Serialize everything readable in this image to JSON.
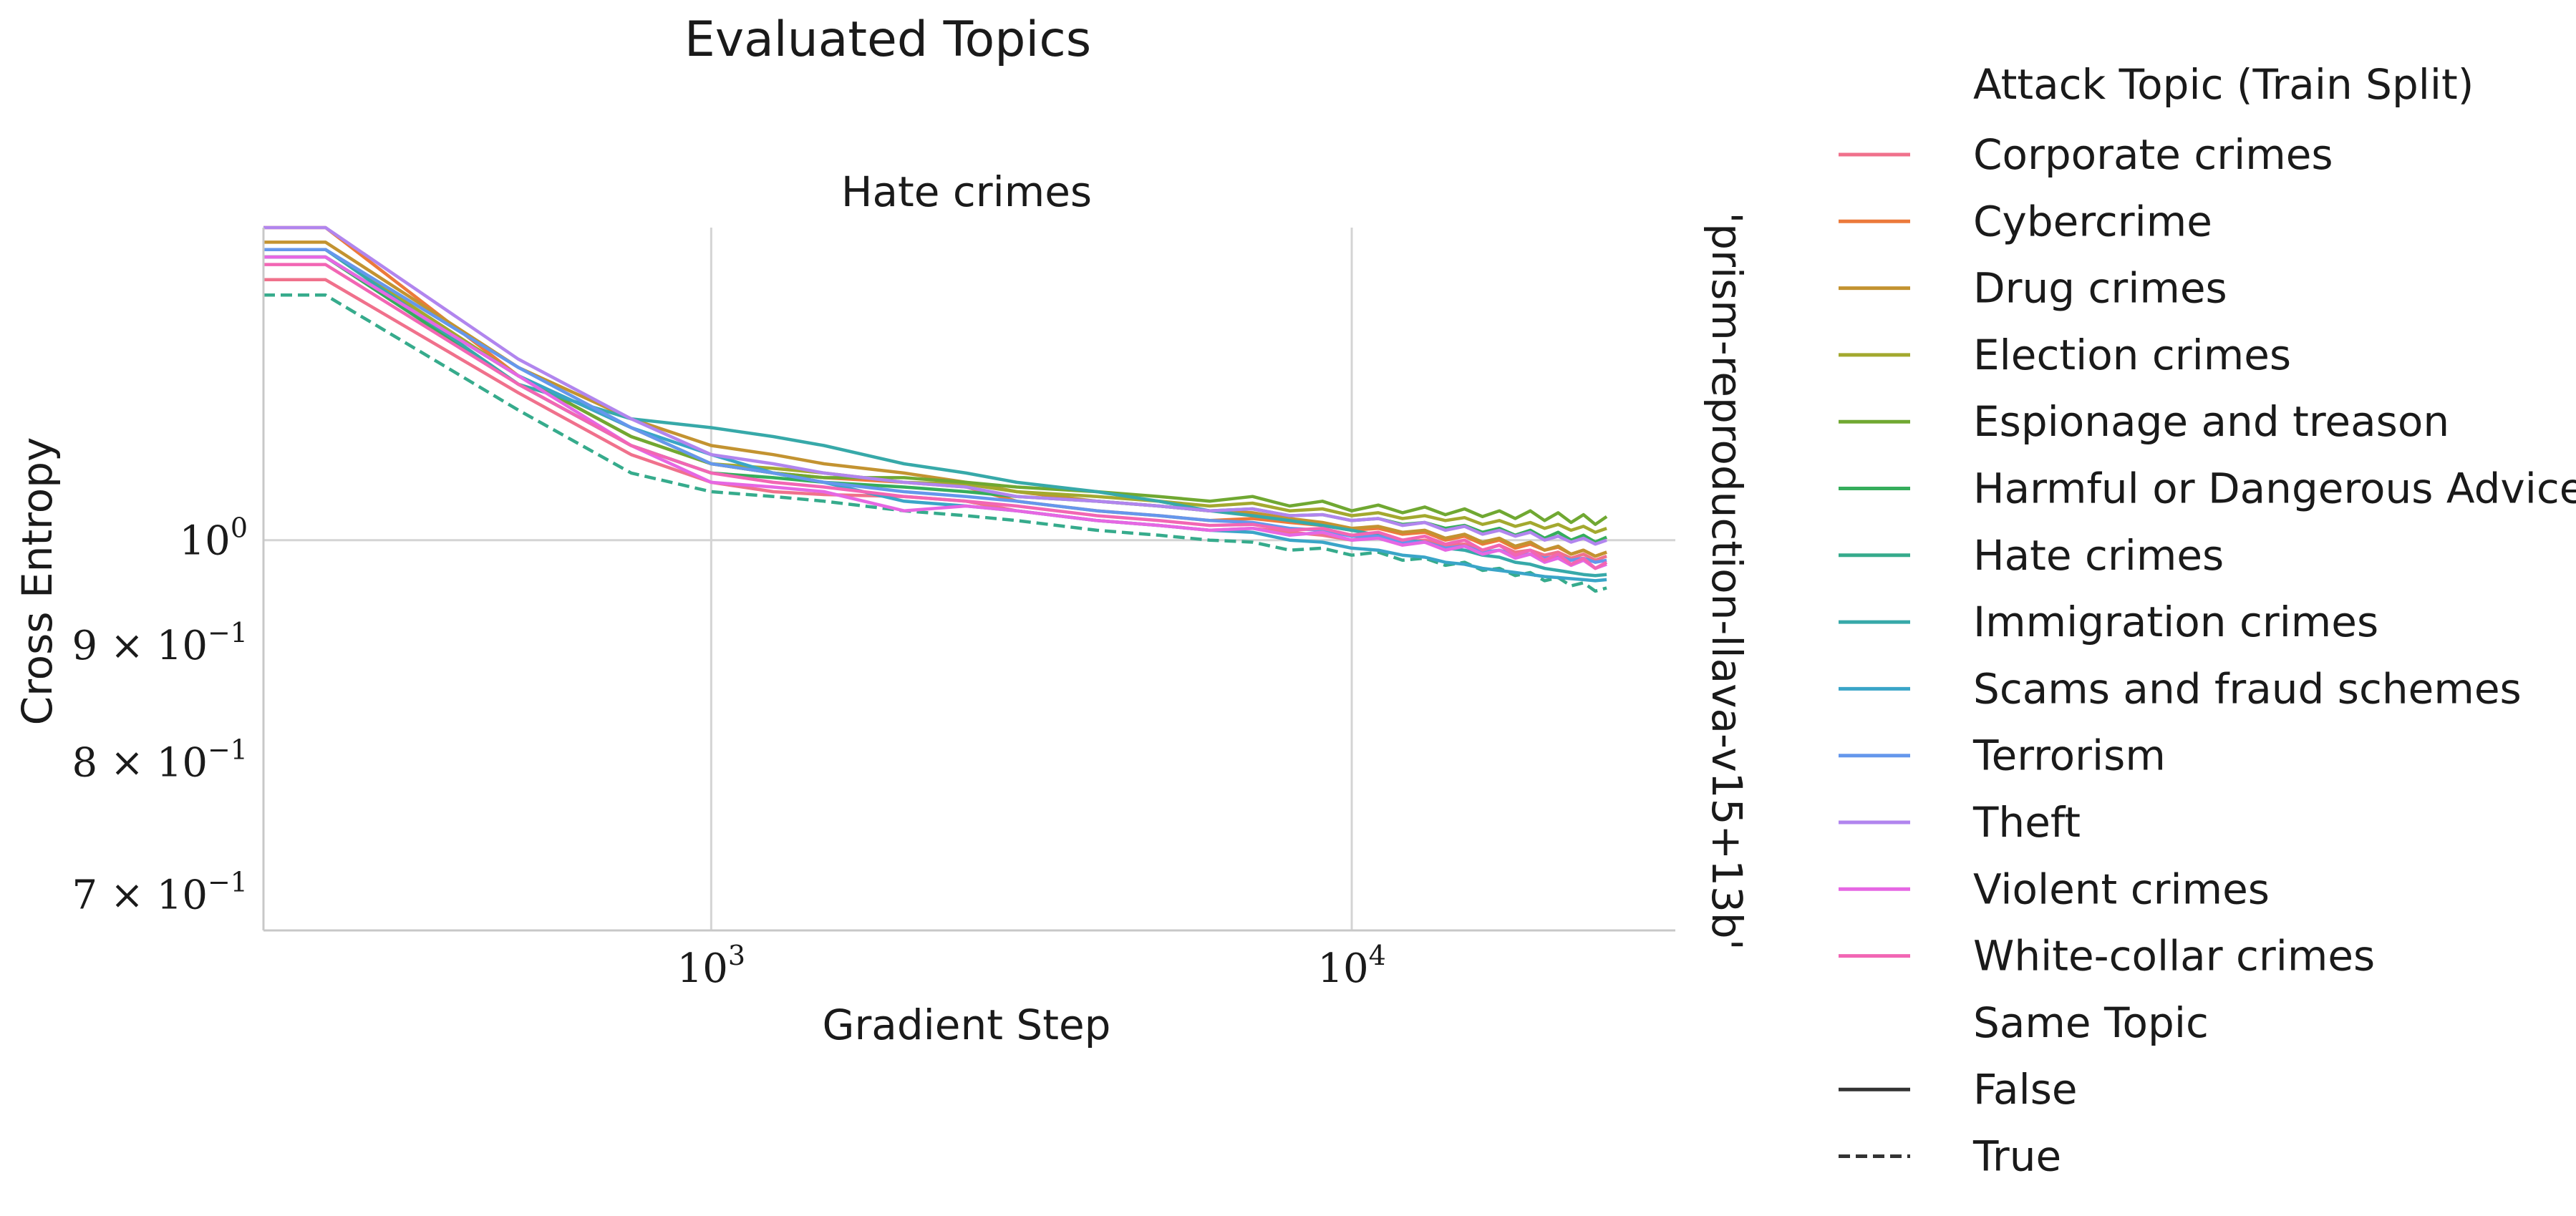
{
  "figure": {
    "suptitle": "Evaluated Topics",
    "panel_title": "Hate crimes",
    "row_label": "'prism-reproduction-llava-v15+13b'"
  },
  "legend": {
    "hue_title": "Attack Topic (Train Split)",
    "style_title": "Same Topic",
    "style_entries": [
      {
        "label": "False",
        "dash": "solid"
      },
      {
        "label": "True",
        "dash": "dashed"
      }
    ]
  },
  "chart_data": {
    "type": "line",
    "xlabel": "Gradient Step",
    "ylabel": "Cross Entropy",
    "xscale": "log",
    "yscale": "log",
    "xlim": [
      200,
      32000
    ],
    "ylim": [
      0.675,
      1.37
    ],
    "x_ticks": [
      {
        "value": 1000,
        "base": "10",
        "exp": "3"
      },
      {
        "value": 10000,
        "base": "10",
        "exp": "4"
      }
    ],
    "y_ticks": [
      {
        "value": 1.0,
        "mant": "",
        "base": "10",
        "exp": "0"
      },
      {
        "value": 0.9,
        "mant": "9 × ",
        "base": "10",
        "exp": "−1"
      },
      {
        "value": 0.8,
        "mant": "8 × ",
        "base": "10",
        "exp": "−1"
      },
      {
        "value": 0.7,
        "mant": "7 × ",
        "base": "10",
        "exp": "−1"
      }
    ],
    "grid": true,
    "legend_position": "right",
    "x": [
      200,
      250,
      500,
      750,
      1000,
      1250,
      1500,
      2000,
      2500,
      3000,
      4000,
      5000,
      6000,
      7000,
      8000,
      9000,
      10000,
      11000,
      12000,
      13000,
      14000,
      15000,
      16000,
      17000,
      18000,
      19000,
      20000,
      21000,
      22000,
      23000,
      24000,
      25000
    ],
    "series": [
      {
        "name": "Corporate crimes",
        "color": "#f0718c",
        "dashed": false,
        "values": [
          1.3,
          1.3,
          1.16,
          1.09,
          1.06,
          1.05,
          1.047,
          1.045,
          1.04,
          1.03,
          1.02,
          1.015,
          1.01,
          1.012,
          1.008,
          1.005,
          1.0,
          1.004,
          0.998,
          1.0,
          0.995,
          0.996,
          0.99,
          0.995,
          0.988,
          0.99,
          0.985,
          0.988,
          0.982,
          0.986,
          0.98,
          0.984
        ]
      },
      {
        "name": "Cybercrime",
        "color": "#ec7a3b",
        "dashed": false,
        "values": [
          1.37,
          1.37,
          1.18,
          1.11,
          1.08,
          1.07,
          1.065,
          1.06,
          1.055,
          1.04,
          1.03,
          1.025,
          1.02,
          1.022,
          1.018,
          1.015,
          1.01,
          1.012,
          1.006,
          1.008,
          1.0,
          1.004,
          0.996,
          1.0,
          0.992,
          0.996,
          0.99,
          0.993,
          0.986,
          0.99,
          0.984,
          0.988
        ]
      },
      {
        "name": "Drug crimes",
        "color": "#c39331",
        "dashed": false,
        "values": [
          1.35,
          1.35,
          1.19,
          1.13,
          1.1,
          1.09,
          1.08,
          1.07,
          1.06,
          1.05,
          1.04,
          1.035,
          1.03,
          1.028,
          1.022,
          1.018,
          1.012,
          1.014,
          1.008,
          1.01,
          1.002,
          1.006,
          0.998,
          1.002,
          0.994,
          0.998,
          0.99,
          0.994,
          0.986,
          0.99,
          0.984,
          0.988
        ]
      },
      {
        "name": "Election crimes",
        "color": "#a3a92f",
        "dashed": false,
        "values": [
          1.34,
          1.34,
          1.18,
          1.12,
          1.08,
          1.075,
          1.07,
          1.06,
          1.058,
          1.05,
          1.045,
          1.04,
          1.035,
          1.038,
          1.03,
          1.032,
          1.025,
          1.028,
          1.022,
          1.025,
          1.02,
          1.023,
          1.016,
          1.02,
          1.014,
          1.018,
          1.012,
          1.016,
          1.01,
          1.014,
          1.008,
          1.012
        ]
      },
      {
        "name": "Espionage and treason",
        "color": "#70a832",
        "dashed": false,
        "values": [
          1.33,
          1.33,
          1.18,
          1.11,
          1.08,
          1.07,
          1.065,
          1.065,
          1.06,
          1.055,
          1.05,
          1.045,
          1.04,
          1.045,
          1.035,
          1.04,
          1.03,
          1.036,
          1.028,
          1.034,
          1.026,
          1.032,
          1.024,
          1.03,
          1.022,
          1.03,
          1.02,
          1.028,
          1.018,
          1.026,
          1.016,
          1.024
        ]
      },
      {
        "name": "Harmful or Dangerous Advice",
        "color": "#35ad5c",
        "dashed": false,
        "values": [
          1.33,
          1.33,
          1.17,
          1.1,
          1.07,
          1.065,
          1.06,
          1.055,
          1.05,
          1.045,
          1.04,
          1.035,
          1.03,
          1.032,
          1.025,
          1.026,
          1.02,
          1.022,
          1.016,
          1.018,
          1.012,
          1.015,
          1.008,
          1.012,
          1.005,
          1.01,
          1.002,
          1.008,
          1.0,
          1.005,
          0.998,
          1.003
        ]
      },
      {
        "name": "Hate crimes",
        "color": "#36ab8c",
        "dashed": true,
        "values": [
          1.28,
          1.28,
          1.14,
          1.07,
          1.05,
          1.045,
          1.04,
          1.03,
          1.025,
          1.02,
          1.01,
          1.005,
          1.0,
          0.998,
          0.99,
          0.992,
          0.985,
          0.988,
          0.98,
          0.982,
          0.975,
          0.978,
          0.97,
          0.972,
          0.965,
          0.968,
          0.96,
          0.963,
          0.955,
          0.958,
          0.95,
          0.953
        ]
      },
      {
        "name": "Immigration crimes",
        "color": "#37a9a9",
        "dashed": false,
        "values": [
          1.34,
          1.34,
          1.17,
          1.13,
          1.12,
          1.11,
          1.1,
          1.08,
          1.07,
          1.06,
          1.05,
          1.04,
          1.03,
          1.025,
          1.02,
          1.015,
          1.01,
          1.005,
          1.0,
          0.998,
          0.992,
          0.99,
          0.985,
          0.983,
          0.978,
          0.976,
          0.972,
          0.97,
          0.968,
          0.966,
          0.965,
          0.966
        ]
      },
      {
        "name": "Scams and fraud schemes",
        "color": "#3aa5c8",
        "dashed": false,
        "values": [
          1.33,
          1.33,
          1.18,
          1.12,
          1.09,
          1.07,
          1.06,
          1.04,
          1.035,
          1.03,
          1.02,
          1.015,
          1.01,
          1.008,
          1.0,
          0.998,
          0.992,
          0.99,
          0.985,
          0.983,
          0.978,
          0.976,
          0.972,
          0.97,
          0.968,
          0.966,
          0.964,
          0.963,
          0.962,
          0.961,
          0.96,
          0.961
        ]
      },
      {
        "name": "Terrorism",
        "color": "#6597ec",
        "dashed": false,
        "values": [
          1.34,
          1.34,
          1.19,
          1.12,
          1.08,
          1.07,
          1.06,
          1.05,
          1.045,
          1.04,
          1.03,
          1.025,
          1.02,
          1.018,
          1.012,
          1.01,
          1.004,
          1.004,
          0.998,
          0.998,
          0.992,
          0.994,
          0.988,
          0.99,
          0.985,
          0.986,
          0.982,
          0.984,
          0.98,
          0.982,
          0.978,
          0.98
        ]
      },
      {
        "name": "Theft",
        "color": "#b185ee",
        "dashed": false,
        "values": [
          1.37,
          1.37,
          1.2,
          1.13,
          1.09,
          1.08,
          1.07,
          1.06,
          1.055,
          1.045,
          1.04,
          1.035,
          1.03,
          1.032,
          1.025,
          1.026,
          1.02,
          1.022,
          1.015,
          1.018,
          1.01,
          1.014,
          1.006,
          1.01,
          1.004,
          1.008,
          1.0,
          1.004,
          0.998,
          1.002,
          0.996,
          1.0
        ]
      },
      {
        "name": "Violent crimes",
        "color": "#e667e3",
        "dashed": false,
        "values": [
          1.33,
          1.33,
          1.18,
          1.1,
          1.06,
          1.055,
          1.05,
          1.03,
          1.035,
          1.03,
          1.02,
          1.015,
          1.01,
          1.012,
          1.005,
          1.008,
          1.0,
          1.002,
          0.995,
          0.998,
          0.99,
          0.994,
          0.986,
          0.99,
          0.982,
          0.986,
          0.978,
          0.982,
          0.975,
          0.98,
          0.972,
          0.976
        ]
      },
      {
        "name": "White-collar crimes",
        "color": "#f266b4",
        "dashed": false,
        "values": [
          1.32,
          1.32,
          1.17,
          1.1,
          1.07,
          1.06,
          1.055,
          1.045,
          1.04,
          1.035,
          1.025,
          1.02,
          1.015,
          1.016,
          1.01,
          1.012,
          1.005,
          1.008,
          1.0,
          1.004,
          0.996,
          1.0,
          0.99,
          0.995,
          0.985,
          0.99,
          0.98,
          0.986,
          0.976,
          0.982,
          0.972,
          0.978
        ]
      }
    ]
  }
}
